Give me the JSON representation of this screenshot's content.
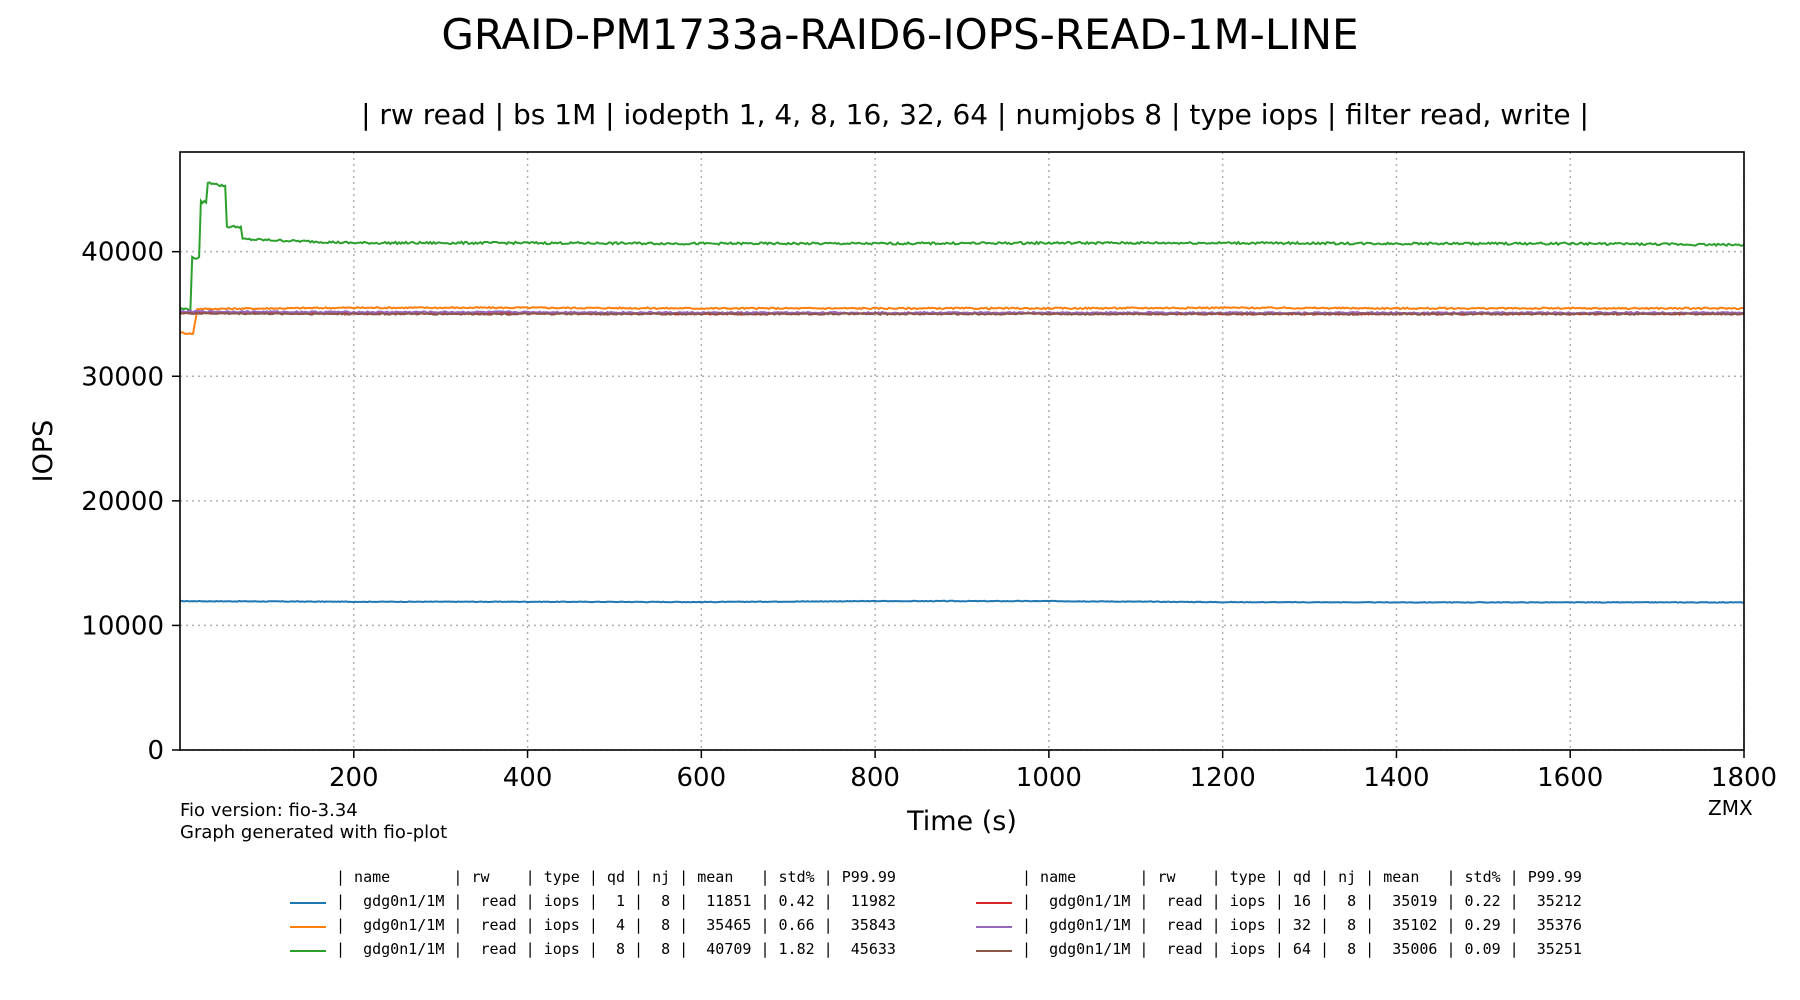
{
  "header": {
    "title": "GRAID-PM1733a-RAID6-IOPS-READ-1M-LINE",
    "subtitle": "| rw read | bs 1M | iodepth 1, 4, 8, 16, 32, 64 | numjobs 8 | type iops | filter read, write |"
  },
  "footer": {
    "fio_version": "Fio version: fio-3.34",
    "generator": "Graph generated with fio-plot",
    "watermark": "ZMX"
  },
  "chart_data": {
    "type": "line",
    "title": "GRAID-PM1733a-RAID6-IOPS-READ-1M-LINE",
    "xlabel": "Time (s)",
    "ylabel": "IOPS",
    "xlim": [
      0,
      1800
    ],
    "ylim": [
      0,
      48000
    ],
    "xticks": [
      200,
      400,
      600,
      800,
      1000,
      1200,
      1400,
      1600,
      1800
    ],
    "yticks": [
      0,
      10000,
      20000,
      30000,
      40000
    ],
    "grid": true,
    "legend_position": "bottom",
    "series": [
      {
        "color": "#1f77b4",
        "qd": 1,
        "points": [
          [
            0,
            11950
          ],
          [
            200,
            11900
          ],
          [
            400,
            11900
          ],
          [
            600,
            11880
          ],
          [
            800,
            11950
          ],
          [
            1000,
            11950
          ],
          [
            1200,
            11870
          ],
          [
            1400,
            11850
          ],
          [
            1600,
            11850
          ],
          [
            1800,
            11850
          ]
        ]
      },
      {
        "color": "#ff7f0e",
        "qd": 4,
        "points": [
          [
            0,
            33500
          ],
          [
            15,
            33400
          ],
          [
            20,
            35400
          ],
          [
            200,
            35500
          ],
          [
            400,
            35500
          ],
          [
            600,
            35450
          ],
          [
            800,
            35450
          ],
          [
            1000,
            35450
          ],
          [
            1200,
            35500
          ],
          [
            1400,
            35450
          ],
          [
            1600,
            35450
          ],
          [
            1800,
            35450
          ]
        ]
      },
      {
        "color": "#2ca02c",
        "qd": 8,
        "points": [
          [
            0,
            35400
          ],
          [
            12,
            35400
          ],
          [
            14,
            39500
          ],
          [
            22,
            39500
          ],
          [
            24,
            44000
          ],
          [
            30,
            44000
          ],
          [
            32,
            45500
          ],
          [
            42,
            45500
          ],
          [
            44,
            45300
          ],
          [
            52,
            45300
          ],
          [
            54,
            42000
          ],
          [
            70,
            42000
          ],
          [
            72,
            41000
          ],
          [
            200,
            40700
          ],
          [
            400,
            40700
          ],
          [
            600,
            40650
          ],
          [
            800,
            40650
          ],
          [
            1000,
            40700
          ],
          [
            1200,
            40700
          ],
          [
            1400,
            40650
          ],
          [
            1600,
            40650
          ],
          [
            1800,
            40550
          ]
        ]
      },
      {
        "color": "#d62728",
        "qd": 16,
        "points": [
          [
            0,
            35100
          ],
          [
            200,
            35050
          ],
          [
            400,
            35050
          ],
          [
            600,
            35000
          ],
          [
            800,
            35050
          ],
          [
            1000,
            35050
          ],
          [
            1200,
            35000
          ],
          [
            1400,
            35000
          ],
          [
            1600,
            35000
          ],
          [
            1800,
            35000
          ]
        ]
      },
      {
        "color": "#9467bd",
        "qd": 32,
        "points": [
          [
            0,
            35200
          ],
          [
            200,
            35150
          ],
          [
            400,
            35150
          ],
          [
            600,
            35100
          ],
          [
            800,
            35100
          ],
          [
            1000,
            35100
          ],
          [
            1200,
            35100
          ],
          [
            1400,
            35100
          ],
          [
            1600,
            35100
          ],
          [
            1800,
            35100
          ]
        ]
      },
      {
        "color": "#8c564b",
        "qd": 64,
        "points": [
          [
            0,
            35050
          ],
          [
            200,
            35000
          ],
          [
            400,
            35000
          ],
          [
            600,
            35000
          ],
          [
            800,
            35000
          ],
          [
            1000,
            35000
          ],
          [
            1200,
            35000
          ],
          [
            1400,
            35000
          ],
          [
            1600,
            35000
          ],
          [
            1800,
            35000
          ]
        ]
      }
    ],
    "table": {
      "header": "| name       | rw    | type | qd | nj | mean   | std% | P99.99",
      "rows": [
        {
          "color": "#1f77b4",
          "text": "|  gdg0n1/1M |  read | iops |  1 |  8 |  11851 | 0.42 |  11982"
        },
        {
          "color": "#ff7f0e",
          "text": "|  gdg0n1/1M |  read | iops |  4 |  8 |  35465 | 0.66 |  35843"
        },
        {
          "color": "#2ca02c",
          "text": "|  gdg0n1/1M |  read | iops |  8 |  8 |  40709 | 1.82 |  45633"
        },
        {
          "color": "#d62728",
          "text": "|  gdg0n1/1M |  read | iops | 16 |  8 |  35019 | 0.22 |  35212"
        },
        {
          "color": "#9467bd",
          "text": "|  gdg0n1/1M |  read | iops | 32 |  8 |  35102 | 0.29 |  35376"
        },
        {
          "color": "#8c564b",
          "text": "|  gdg0n1/1M |  read | iops | 64 |  8 |  35006 | 0.09 |  35251"
        }
      ]
    }
  }
}
